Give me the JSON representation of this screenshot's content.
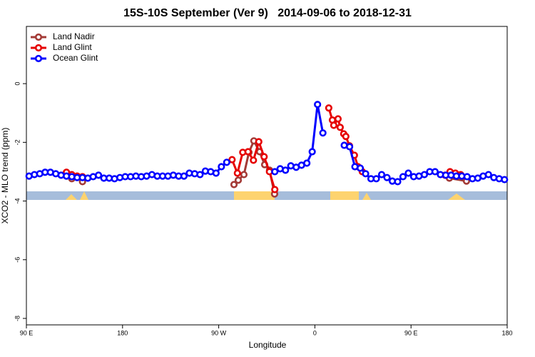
{
  "chart_data": {
    "type": "line",
    "title": "15S-10S September (Ver 9)   2014-09-06 to 2018-12-31",
    "xlabel": "Longitude",
    "ylabel": "XCO2 - MLO trend (ppm)",
    "xlim": [
      90,
      540
    ],
    "xticks": [
      {
        "value": 90,
        "label": "90 E"
      },
      180,
      {
        "value": 270,
        "label": "90 W"
      },
      {
        "value": 360,
        "label": "0"
      },
      {
        "value": 450,
        "label": "90 E"
      },
      {
        "value": 540,
        "label": "180"
      }
    ],
    "ylim": [
      -8.22,
      1.95
    ],
    "yticks": [
      0,
      -2,
      -4,
      -6,
      -8
    ],
    "legend": "top-left",
    "series": [
      {
        "name": "Land Nadir",
        "color": "#a33a36",
        "x": [
          132.5,
          137.5,
          142.5,
          200,
          284.3,
          288.3,
          293.6,
          298.3,
          302.9,
          308.3,
          313,
          317.6,
          322.3,
          400,
          485.9,
          501.9
        ],
        "values": [
          -3.24,
          -3.17,
          -3.34,
          null,
          -3.44,
          -3.29,
          -3.1,
          -2.34,
          -1.95,
          -2.32,
          -2.76,
          -2.95,
          -3.76,
          null,
          -3.22,
          -3.32
        ]
      },
      {
        "name": "Land Glint",
        "color": "#e60000",
        "x": [
          127.5,
          132.5,
          137.5,
          142.5,
          147.5,
          282.5,
          287.5,
          292.5,
          297.5,
          302.5,
          307.5,
          312.5,
          317.5,
          322.5,
          340,
          373,
          376.4,
          377.7,
          381.7,
          383.7,
          387,
          389,
          392.4,
          397,
          400.4,
          404.4,
          440,
          481.9,
          486.5,
          491.5,
          496.5
        ],
        "values": [
          -3.02,
          -3.1,
          -3.15,
          -3.17,
          null,
          -2.59,
          -3.05,
          -2.34,
          -2.32,
          -2.61,
          -1.98,
          -2.49,
          -3.0,
          -3.61,
          null,
          -0.83,
          -1.24,
          -1.42,
          -1.2,
          -1.49,
          -1.71,
          -1.8,
          -2.12,
          -2.44,
          -2.83,
          -3.0,
          null,
          -3.12,
          -3.0,
          -3.05,
          -3.1
        ]
      },
      {
        "name": "Ocean Glint",
        "color": "#0000ff",
        "x": [
          92.5,
          97.5,
          102.5,
          107.5,
          112.5,
          117.5,
          122.5,
          127.5,
          132.5,
          137.5,
          142.5,
          147.5,
          152.5,
          157.5,
          162.5,
          167.5,
          172.5,
          177.5,
          182.5,
          187.5,
          192.5,
          197.5,
          202.5,
          207.5,
          212.5,
          217.5,
          222.5,
          227.5,
          232.5,
          237.5,
          242.5,
          247.5,
          252.5,
          257.5,
          262.5,
          267.5,
          272.5,
          277.5,
          282.5,
          287.5,
          292.5,
          297.5,
          302.5,
          307.5,
          312.5,
          317.5,
          322.5,
          327.5,
          332.5,
          337.5,
          342.5,
          347.5,
          352.5,
          357.5,
          362.5,
          367.5,
          372.5,
          377.5,
          382.5,
          387.5,
          392.5,
          397.5,
          402.5,
          407.5,
          412.5,
          417.5,
          422.5,
          427.5,
          432.5,
          437.5,
          442.5,
          447.5,
          452.5,
          457.5,
          462.5,
          467.5,
          472.5,
          477.5,
          482.5,
          487.5,
          492.5,
          497.5,
          502.5,
          507.5,
          512.5,
          517.5,
          522.5,
          527.5,
          532.5,
          537.5
        ],
        "values": [
          -3.15,
          -3.1,
          -3.07,
          -3.02,
          -3.02,
          -3.07,
          -3.12,
          -3.15,
          -3.17,
          -3.2,
          -3.2,
          -3.22,
          -3.17,
          -3.12,
          -3.22,
          -3.22,
          -3.24,
          -3.2,
          -3.17,
          -3.17,
          -3.15,
          -3.17,
          -3.15,
          -3.1,
          -3.15,
          -3.15,
          -3.15,
          -3.12,
          -3.15,
          -3.15,
          -3.05,
          -3.07,
          -3.1,
          -2.98,
          -3.0,
          -3.05,
          -2.83,
          -2.68,
          null,
          null,
          null,
          null,
          null,
          null,
          null,
          null,
          -3.0,
          -2.9,
          -2.95,
          -2.8,
          -2.85,
          -2.78,
          -2.71,
          -2.32,
          -0.71,
          -1.68,
          null,
          null,
          null,
          -2.1,
          -2.15,
          -2.83,
          -2.88,
          -3.07,
          -3.24,
          -3.24,
          -3.1,
          -3.2,
          -3.32,
          -3.34,
          -3.17,
          -3.05,
          -3.17,
          -3.15,
          -3.1,
          -3.0,
          -3.0,
          -3.1,
          -3.12,
          -3.12,
          -3.15,
          -3.15,
          -3.17,
          -3.24,
          -3.22,
          -3.15,
          -3.1,
          -3.2,
          -3.24,
          -3.27
        ]
      }
    ]
  }
}
